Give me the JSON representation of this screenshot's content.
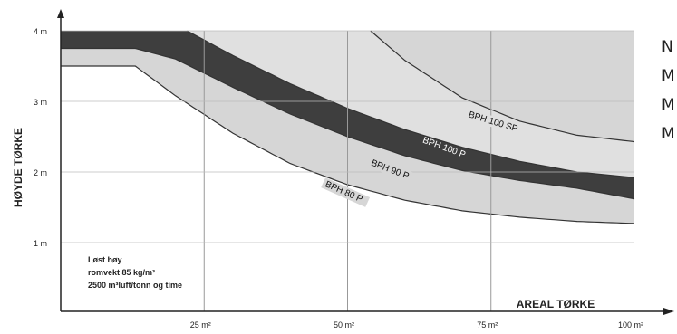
{
  "chart_data": {
    "type": "area",
    "xlabel": "AREAL TØRKE",
    "ylabel": "HØYDE TØRKE",
    "xlim": [
      0,
      100
    ],
    "ylim": [
      0.5,
      4.5
    ],
    "grid": true,
    "x_ticks": [
      {
        "value": 25,
        "label": "25 m²"
      },
      {
        "value": 50,
        "label": "50 m²"
      },
      {
        "value": 75,
        "label": "75 m²"
      },
      {
        "value": 100,
        "label": "100 m²"
      }
    ],
    "y_ticks": [
      {
        "value": 1,
        "label": "1 m"
      },
      {
        "value": 2,
        "label": "2 m"
      },
      {
        "value": 3,
        "label": "3 m"
      },
      {
        "value": 4,
        "label": "4 m"
      }
    ],
    "curves": [
      {
        "name": "BPH 80 P",
        "x": [
          0,
          13,
          20,
          30,
          40,
          50,
          60,
          70,
          80,
          90,
          100
        ],
        "y": [
          3.5,
          3.5,
          3.08,
          2.55,
          2.12,
          1.82,
          1.6,
          1.45,
          1.36,
          1.3,
          1.27
        ]
      },
      {
        "name": "BPH 90 P",
        "x": [
          0,
          13,
          20,
          30,
          40,
          50,
          60,
          70,
          80,
          90,
          100
        ],
        "y": [
          3.75,
          3.75,
          3.6,
          3.2,
          2.82,
          2.5,
          2.23,
          2.02,
          1.88,
          1.77,
          1.62
        ]
      },
      {
        "name": "BPH 100 P",
        "x": [
          22,
          30,
          40,
          50,
          60,
          70,
          80,
          90,
          100
        ],
        "y": [
          4.0,
          3.65,
          3.25,
          2.9,
          2.6,
          2.35,
          2.15,
          2.0,
          1.92
        ]
      },
      {
        "name": "BPH 100 SP",
        "x": [
          54,
          60,
          70,
          80,
          90,
          100
        ],
        "y": [
          4.0,
          3.58,
          3.05,
          2.72,
          2.52,
          2.43
        ]
      }
    ],
    "curve_labels": [
      {
        "text": "BPH 80 P",
        "x": 46,
        "y": 1.8
      },
      {
        "text": "BPH 90 P",
        "x": 54,
        "y": 2.1
      },
      {
        "text": "BPH 100 P",
        "x": 63,
        "y": 2.42
      },
      {
        "text": "BPH 100 SP",
        "x": 71,
        "y": 2.78
      }
    ],
    "annotation": {
      "lines": [
        "Løst høy",
        "romvekt 85 kg/m³",
        "2500 m³luft/tonn og time"
      ]
    },
    "colors": {
      "light_band": "#d6d6d6",
      "dark_band": "#3e3e3e",
      "upper_band": "#e0e0e0",
      "line": "#333333"
    }
  },
  "side_text": [
    "N",
    "M",
    "M",
    "M"
  ]
}
